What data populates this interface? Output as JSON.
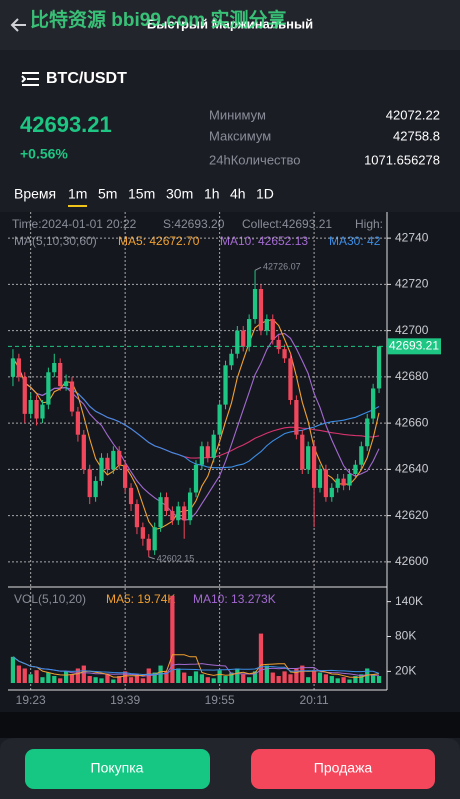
{
  "header": {
    "title": "Быстрый Маржинальный",
    "watermark": "比特资源 bbi99.com 实测分享"
  },
  "ticker": {
    "pair": "BTC/USDT",
    "price": "42693.21",
    "change": "+0.56%"
  },
  "stats": [
    {
      "label": "Минимум",
      "value": "42072.22"
    },
    {
      "label": "Максимум",
      "value": "42758.8"
    },
    {
      "label": "24hКоличество",
      "value": "1071.656278"
    }
  ],
  "timeframes": {
    "items": [
      "Время",
      "1m",
      "5m",
      "15m",
      "30m",
      "1h",
      "4h",
      "1D"
    ],
    "active": "1m"
  },
  "chart": {
    "info": [
      "Time:2024-01-01 20:22",
      "S:42693.20",
      "Collect:42693.21",
      "High:"
    ],
    "ma_legend": [
      "MA(5,10,30,60)",
      "MA5: 42672.70",
      "MA10: 42652.13",
      "MA30: 42"
    ],
    "colors": {
      "up": "#1ec683",
      "down": "#f0475c",
      "ma5": "#f0a030",
      "ma10": "#a26ad0",
      "ma30": "#3a8ee6",
      "ma60": "#d8336e"
    },
    "ylim": [
      42590,
      42750
    ],
    "yticks": [
      42740,
      42720,
      42700,
      42680,
      42660,
      42640,
      42620,
      42600
    ],
    "last_price": 42693.21,
    "high_mark": 42726.07,
    "low_mark": 42602.15,
    "candles": [
      [
        42680,
        42692,
        42676,
        42688
      ],
      [
        42688,
        42690,
        42678,
        42680
      ],
      [
        42680,
        42682,
        42660,
        42664
      ],
      [
        42664,
        42673,
        42662,
        42670
      ],
      [
        42670,
        42672,
        42659,
        42662
      ],
      [
        42662,
        42670,
        42660,
        42668
      ],
      [
        42668,
        42684,
        42666,
        42682
      ],
      [
        42682,
        42690,
        42680,
        42686
      ],
      [
        42686,
        42688,
        42674,
        42676
      ],
      [
        42676,
        42681,
        42674,
        42678
      ],
      [
        42678,
        42680,
        42663,
        42665
      ],
      [
        42665,
        42667,
        42652,
        42655
      ],
      [
        42655,
        42657,
        42638,
        42640
      ],
      [
        42640,
        42642,
        42625,
        42628
      ],
      [
        42628,
        42637,
        42626,
        42635
      ],
      [
        42635,
        42647,
        42633,
        42645
      ],
      [
        42645,
        42647,
        42638,
        42640
      ],
      [
        42640,
        42650,
        42638,
        42648
      ],
      [
        42648,
        42650,
        42640,
        42642
      ],
      [
        42642,
        42644,
        42630,
        42632
      ],
      [
        42632,
        42634,
        42622,
        42625
      ],
      [
        42625,
        42627,
        42612,
        42615
      ],
      [
        42615,
        42617,
        42607,
        42610
      ],
      [
        42610,
        42612,
        42602.15,
        42605
      ],
      [
        42605,
        42617,
        42603,
        42615
      ],
      [
        42615,
        42630,
        42613,
        42628
      ],
      [
        42628,
        42630,
        42620,
        42622
      ],
      [
        42622,
        42624,
        42616,
        42618
      ],
      [
        42618,
        42626,
        42616,
        42624
      ],
      [
        42624,
        42626,
        42610,
        42618
      ],
      [
        42618,
        42632,
        42616,
        42630
      ],
      [
        42630,
        42644,
        42628,
        42642
      ],
      [
        42642,
        42652,
        42640,
        42650
      ],
      [
        42650,
        42652,
        42643,
        42645
      ],
      [
        42645,
        42657,
        42643,
        42655
      ],
      [
        42655,
        42670,
        42653,
        42668
      ],
      [
        42668,
        42687,
        42666,
        42685
      ],
      [
        42685,
        42692,
        42683,
        42690
      ],
      [
        42690,
        42702,
        42688,
        42700
      ],
      [
        42700,
        42702,
        42691,
        42693
      ],
      [
        42693,
        42707,
        42691,
        42705
      ],
      [
        42705,
        42726.07,
        42703,
        42718
      ],
      [
        42718,
        42720,
        42698,
        42700
      ],
      [
        42700,
        42707,
        42698,
        42705
      ],
      [
        42705,
        42707,
        42694,
        42696
      ],
      [
        42696,
        42698,
        42690,
        42692
      ],
      [
        42692,
        42694,
        42686,
        42688
      ],
      [
        42688,
        42690,
        42668,
        42670
      ],
      [
        42670,
        42672,
        42653,
        42655
      ],
      [
        42655,
        42657,
        42638,
        42640
      ],
      [
        42640,
        42652,
        42638,
        42650
      ],
      [
        42650,
        42652,
        42615,
        42632
      ],
      [
        42632,
        42642,
        42630,
        42640
      ],
      [
        42640,
        42642,
        42626,
        42628
      ],
      [
        42628,
        42634,
        42626,
        42632
      ],
      [
        42632,
        42638,
        42630,
        42636
      ],
      [
        42636,
        42638,
        42631,
        42633
      ],
      [
        42633,
        42640,
        42631,
        42638
      ],
      [
        42638,
        42644,
        42636,
        42642
      ],
      [
        42642,
        42652,
        42640,
        42650
      ],
      [
        42650,
        42664,
        42648,
        42662
      ],
      [
        42662,
        42677,
        42660,
        42675
      ],
      [
        42675,
        42693.21,
        42673,
        42693.21
      ]
    ],
    "volume": {
      "legend": [
        "VOL(5,10,20)",
        "MA5: 19.74K",
        "MA10: 13.273K"
      ],
      "values": [
        45000,
        30000,
        25000,
        15000,
        22000,
        10000,
        18000,
        12000,
        8000,
        20000,
        15000,
        25000,
        30000,
        12000,
        10000,
        8000,
        15000,
        6000,
        12000,
        20000,
        10000,
        15000,
        8000,
        25000,
        18000,
        30000,
        20000,
        150000,
        25000,
        18000,
        12000,
        20000,
        15000,
        10000,
        8000,
        22000,
        12000,
        18000,
        25000,
        15000,
        10000,
        20000,
        85000,
        30000,
        18000,
        12000,
        20000,
        15000,
        25000,
        30000,
        10000,
        22000,
        18000,
        15000,
        12000,
        8000,
        10000,
        6000,
        12000,
        15000,
        25000,
        15000,
        12000
      ],
      "ylim": [
        0,
        160000
      ],
      "yticks": [
        {
          "value": 140000,
          "label": "140K"
        },
        {
          "value": 80000,
          "label": "80K"
        },
        {
          "value": 20000,
          "label": "20K"
        }
      ]
    },
    "x_labels": [
      "19:23",
      "19:39",
      "19:55",
      "20:11"
    ]
  },
  "buttons": {
    "buy": "Покупка",
    "sell": "Продажа"
  }
}
